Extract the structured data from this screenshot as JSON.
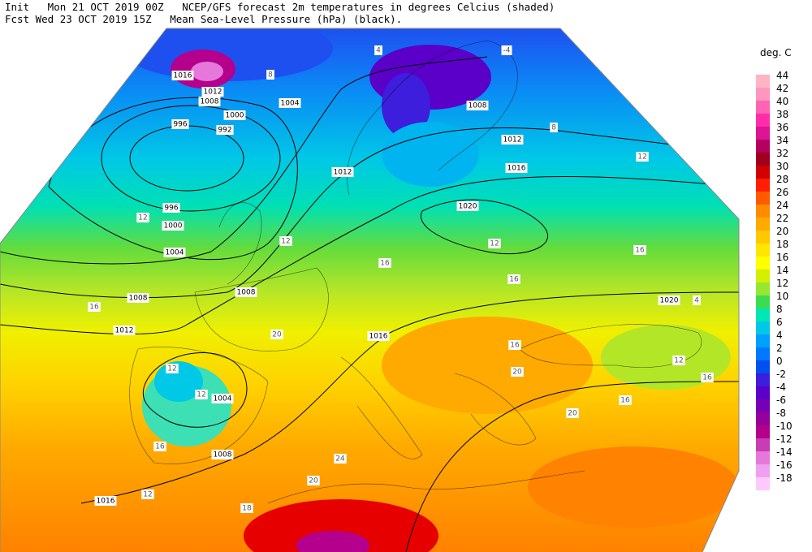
{
  "header": {
    "line1": "Init   Mon 21 OCT 2019 00Z   NCEP/GFS forecast 2m temperatures in degrees Celcius (shaded)",
    "line2": "Fcst Wed 23 OCT 2019 15Z   Mean Sea-Level Pressure (hPa) (black)."
  },
  "legend": {
    "title": "deg. C",
    "entries": [
      {
        "label": "44",
        "color": "#ffb4c3"
      },
      {
        "label": "42",
        "color": "#ff96bf"
      },
      {
        "label": "40",
        "color": "#ff64b4"
      },
      {
        "label": "38",
        "color": "#ff2daa"
      },
      {
        "label": "36",
        "color": "#dc1496"
      },
      {
        "label": "34",
        "color": "#b4005f"
      },
      {
        "label": "32",
        "color": "#a0001e"
      },
      {
        "label": "30",
        "color": "#d20000"
      },
      {
        "label": "28",
        "color": "#ff1e00"
      },
      {
        "label": "26",
        "color": "#ff5a00"
      },
      {
        "label": "24",
        "color": "#ff8c00"
      },
      {
        "label": "22",
        "color": "#ffaa00"
      },
      {
        "label": "20",
        "color": "#ffc800"
      },
      {
        "label": "18",
        "color": "#ffe600"
      },
      {
        "label": "16",
        "color": "#ffff00"
      },
      {
        "label": "14",
        "color": "#d2f000"
      },
      {
        "label": "12",
        "color": "#96e632"
      },
      {
        "label": "10",
        "color": "#3cdc50"
      },
      {
        "label": "8",
        "color": "#00e6b4"
      },
      {
        "label": "6",
        "color": "#00c8e6"
      },
      {
        "label": "4",
        "color": "#00a0ff"
      },
      {
        "label": "2",
        "color": "#0078ff"
      },
      {
        "label": "0",
        "color": "#0050f0"
      },
      {
        "label": "-2",
        "color": "#3c1edc"
      },
      {
        "label": "-4",
        "color": "#5a00c8"
      },
      {
        "label": "-6",
        "color": "#7800b4"
      },
      {
        "label": "-8",
        "color": "#96009b"
      },
      {
        "label": "-10",
        "color": "#b4008c"
      },
      {
        "label": "-12",
        "color": "#c83cb4"
      },
      {
        "label": "-14",
        "color": "#e678dc"
      },
      {
        "label": "-16",
        "color": "#f0a0f0"
      },
      {
        "label": "-18",
        "color": "#ffc8ff"
      }
    ]
  },
  "isobar_labels": [
    "1016",
    "1012",
    "1008",
    "1000",
    "992",
    "996",
    "1004",
    "996",
    "1000",
    "1004",
    "1008",
    "1012",
    "1008",
    "1012",
    "1016",
    "1020",
    "1012",
    "1020",
    "1016",
    "1004",
    "1008",
    "1016",
    "1008"
  ],
  "temperature_labels": [
    "8",
    "4",
    "-4",
    "8",
    "12",
    "12",
    "12",
    "12",
    "16",
    "16",
    "16",
    "16",
    "12",
    "20",
    "16",
    "16",
    "20",
    "12",
    "12",
    "16",
    "12",
    "20",
    "24",
    "18",
    "20",
    "16",
    "4"
  ]
}
